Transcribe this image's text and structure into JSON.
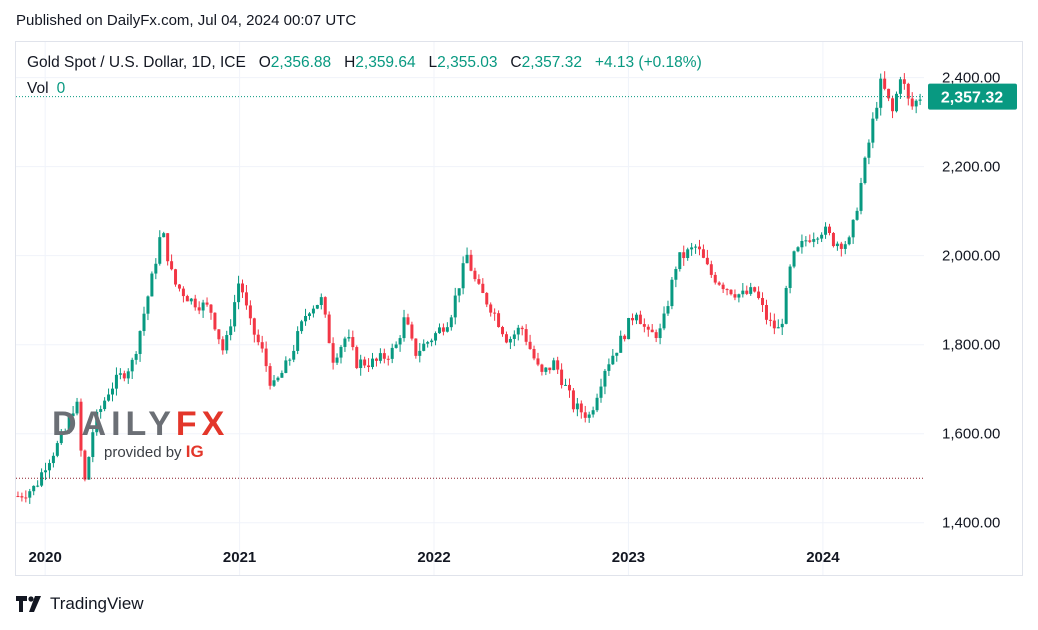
{
  "header": {
    "published": "Published on DailyFx.com, Jul 04, 2024 00:07 UTC"
  },
  "legend": {
    "symbol": "Gold Spot / U.S. Dollar, 1D, ICE",
    "o_label": "O",
    "o_value": "2,356.88",
    "h_label": "H",
    "h_value": "2,359.64",
    "l_label": "L",
    "l_value": "2,355.03",
    "c_label": "C",
    "c_value": "2,357.32",
    "change": "+4.13 (+0.18%)",
    "vol_label": "Vol",
    "vol_value": "0"
  },
  "branding": {
    "dailyfx_daily": "DAILY",
    "dailyfx_fx": "FX",
    "provided_by": "provided by",
    "ig": "IG",
    "tradingview": "TradingView"
  },
  "colors": {
    "up": "#089981",
    "down": "#f23645",
    "price_badge": "#089981",
    "grid": "#f0f3fa"
  },
  "chart_data": {
    "type": "candlestick",
    "ylim": [
      1350,
      2480
    ],
    "y_ticks": [
      1400,
      1600,
      1800,
      2000,
      2200,
      2400
    ],
    "y_tick_labels": [
      "1,400.00",
      "1,600.00",
      "1,800.00",
      "2,000.00",
      "2,200.00",
      "2,400.00"
    ],
    "x_range": [
      2019.85,
      2024.52
    ],
    "x_ticks": [
      2020,
      2021,
      2022,
      2023,
      2024
    ],
    "x_tick_labels": [
      "2020",
      "2021",
      "2022",
      "2023",
      "2024"
    ],
    "last_price": 2357.32,
    "last_price_label": "2,357.32",
    "horizontal_line": 1500,
    "anchors": [
      [
        2019.86,
        1460
      ],
      [
        2019.95,
        1480
      ],
      [
        2020.0,
        1530
      ],
      [
        2020.1,
        1600
      ],
      [
        2020.16,
        1680
      ],
      [
        2020.2,
        1480
      ],
      [
        2020.25,
        1620
      ],
      [
        2020.33,
        1700
      ],
      [
        2020.45,
        1760
      ],
      [
        2020.55,
        1950
      ],
      [
        2020.6,
        2060
      ],
      [
        2020.66,
        1940
      ],
      [
        2020.75,
        1900
      ],
      [
        2020.85,
        1880
      ],
      [
        2020.92,
        1780
      ],
      [
        2021.0,
        1950
      ],
      [
        2021.05,
        1850
      ],
      [
        2021.12,
        1780
      ],
      [
        2021.17,
        1700
      ],
      [
        2021.25,
        1760
      ],
      [
        2021.35,
        1880
      ],
      [
        2021.42,
        1900
      ],
      [
        2021.48,
        1770
      ],
      [
        2021.55,
        1820
      ],
      [
        2021.6,
        1760
      ],
      [
        2021.7,
        1760
      ],
      [
        2021.8,
        1790
      ],
      [
        2021.85,
        1860
      ],
      [
        2021.9,
        1780
      ],
      [
        2022.0,
        1820
      ],
      [
        2022.08,
        1860
      ],
      [
        2022.17,
        2000
      ],
      [
        2022.22,
        1930
      ],
      [
        2022.3,
        1880
      ],
      [
        2022.38,
        1810
      ],
      [
        2022.45,
        1840
      ],
      [
        2022.55,
        1730
      ],
      [
        2022.62,
        1760
      ],
      [
        2022.72,
        1660
      ],
      [
        2022.8,
        1640
      ],
      [
        2022.88,
        1750
      ],
      [
        2022.95,
        1800
      ],
      [
        2023.04,
        1880
      ],
      [
        2023.1,
        1820
      ],
      [
        2023.17,
        1830
      ],
      [
        2023.25,
        1990
      ],
      [
        2023.35,
        2020
      ],
      [
        2023.42,
        1960
      ],
      [
        2023.5,
        1930
      ],
      [
        2023.58,
        1910
      ],
      [
        2023.65,
        1920
      ],
      [
        2023.72,
        1850
      ],
      [
        2023.78,
        1830
      ],
      [
        2023.84,
        1990
      ],
      [
        2023.92,
        2040
      ],
      [
        2024.0,
        2060
      ],
      [
        2024.06,
        2030
      ],
      [
        2024.14,
        2030
      ],
      [
        2024.2,
        2170
      ],
      [
        2024.27,
        2330
      ],
      [
        2024.3,
        2390
      ],
      [
        2024.36,
        2320
      ],
      [
        2024.4,
        2410
      ],
      [
        2024.45,
        2330
      ],
      [
        2024.5,
        2357
      ]
    ]
  }
}
